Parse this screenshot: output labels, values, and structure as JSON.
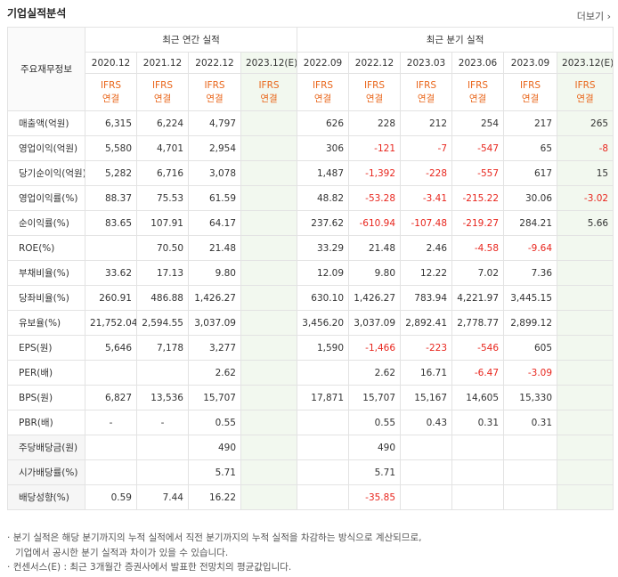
{
  "header": {
    "title": "기업실적분석",
    "more": "더보기"
  },
  "table": {
    "corner": "주요재무정보",
    "column_groups": [
      "최근 연간 실적",
      "최근 분기 실적"
    ],
    "columns": [
      {
        "period": "2020.12",
        "standard": "IFRS",
        "scope": "연결"
      },
      {
        "period": "2021.12",
        "standard": "IFRS",
        "scope": "연결"
      },
      {
        "period": "2022.12",
        "standard": "IFRS",
        "scope": "연결"
      },
      {
        "period": "2023.12(E)",
        "standard": "IFRS",
        "scope": "연결"
      },
      {
        "period": "2022.09",
        "standard": "IFRS",
        "scope": "연결"
      },
      {
        "period": "2022.12",
        "standard": "IFRS",
        "scope": "연결"
      },
      {
        "period": "2023.03",
        "standard": "IFRS",
        "scope": "연결"
      },
      {
        "period": "2023.06",
        "standard": "IFRS",
        "scope": "연결"
      },
      {
        "period": "2023.09",
        "standard": "IFRS",
        "scope": "연결"
      },
      {
        "period": "2023.12(E)",
        "standard": "IFRS",
        "scope": "연결"
      }
    ],
    "rows": [
      {
        "label": "매출액(억원)",
        "values": [
          "6,315",
          "6,224",
          "4,797",
          null,
          "626",
          "228",
          "212",
          "254",
          "217",
          "265"
        ]
      },
      {
        "label": "영업이익(억원)",
        "values": [
          "5,580",
          "4,701",
          "2,954",
          null,
          "306",
          "-121",
          "-7",
          "-547",
          "65",
          "-8"
        ]
      },
      {
        "label": "당기순이익(억원)",
        "values": [
          "5,282",
          "6,716",
          "3,078",
          null,
          "1,487",
          "-1,392",
          "-228",
          "-557",
          "617",
          "15"
        ]
      },
      {
        "label": "영업이익률(%)",
        "values": [
          "88.37",
          "75.53",
          "61.59",
          null,
          "48.82",
          "-53.28",
          "-3.41",
          "-215.22",
          "30.06",
          "-3.02"
        ]
      },
      {
        "label": "순이익률(%)",
        "values": [
          "83.65",
          "107.91",
          "64.17",
          null,
          "237.62",
          "-610.94",
          "-107.48",
          "-219.27",
          "284.21",
          "5.66"
        ]
      },
      {
        "label": "ROE(%)",
        "values": [
          null,
          "70.50",
          "21.48",
          null,
          "33.29",
          "21.48",
          "2.46",
          "-4.58",
          "-9.64",
          null
        ]
      },
      {
        "label": "부채비율(%)",
        "values": [
          "33.62",
          "17.13",
          "9.80",
          null,
          "12.09",
          "9.80",
          "12.22",
          "7.02",
          "7.36",
          null
        ]
      },
      {
        "label": "당좌비율(%)",
        "values": [
          "260.91",
          "486.88",
          "1,426.27",
          null,
          "630.10",
          "1,426.27",
          "783.94",
          "4,221.97",
          "3,445.15",
          null
        ]
      },
      {
        "label": "유보율(%)",
        "values": [
          "21,752.04",
          "2,594.55",
          "3,037.09",
          null,
          "3,456.20",
          "3,037.09",
          "2,892.41",
          "2,778.77",
          "2,899.12",
          null
        ]
      },
      {
        "label": "EPS(원)",
        "values": [
          "5,646",
          "7,178",
          "3,277",
          null,
          "1,590",
          "-1,466",
          "-223",
          "-546",
          "605",
          null
        ]
      },
      {
        "label": "PER(배)",
        "values": [
          null,
          null,
          "2.62",
          null,
          null,
          "2.62",
          "16.71",
          "-6.47",
          "-3.09",
          null
        ]
      },
      {
        "label": "BPS(원)",
        "values": [
          "6,827",
          "13,536",
          "15,707",
          null,
          "17,871",
          "15,707",
          "15,167",
          "14,605",
          "15,330",
          null
        ]
      },
      {
        "label": "PBR(배)",
        "values": [
          "-",
          "-",
          "0.55",
          null,
          null,
          "0.55",
          "0.43",
          "0.31",
          "0.31",
          null
        ]
      },
      {
        "label": "주당배당금(원)",
        "values": [
          null,
          null,
          "490",
          null,
          null,
          "490",
          null,
          null,
          null,
          null
        ]
      },
      {
        "label": "시가배당률(%)",
        "values": [
          null,
          null,
          "5.71",
          null,
          null,
          "5.71",
          null,
          null,
          null,
          null
        ]
      },
      {
        "label": "배당성향(%)",
        "values": [
          "0.59",
          "7.44",
          "16.22",
          null,
          null,
          "-35.85",
          null,
          null,
          null,
          null
        ]
      }
    ]
  },
  "notes": [
    "분기 실적은 해당 분기까지의 누적 실적에서 직전 분기까지의 누적 실적을 차감하는 방식으로 계산되므로,",
    "기업에서 공시한 분기 실적과 차이가 있을 수 있습니다.",
    "컨센서스(E) : 최근 3개월간 증권사에서 발표한 전망치의 평균값입니다."
  ]
}
